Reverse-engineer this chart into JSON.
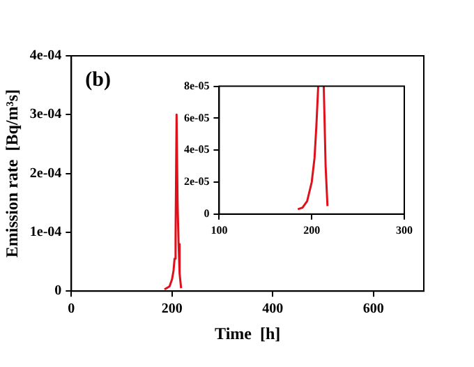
{
  "chart_data": [
    {
      "type": "line",
      "xlabel": "Time  [h]",
      "ylabel": "Emission rate  [Bq/m³s]",
      "annotations": [
        "(b)"
      ],
      "xlim": [
        0,
        700
      ],
      "xticks": [
        0,
        200,
        400,
        600
      ],
      "ylim": [
        0,
        0.0004
      ],
      "yticks": [
        0,
        {
          "value": 0.0001,
          "label": "1e-04"
        },
        {
          "value": 0.0002,
          "label": "2e-04"
        },
        {
          "value": 0.0003,
          "label": "3e-04"
        },
        {
          "value": 0.0004,
          "label": "4e-04"
        }
      ],
      "grid": false,
      "legend": false,
      "marker": "none",
      "series": [
        {
          "color": "#e0101a",
          "x": [
            185,
            195,
            200,
            203,
            205,
            207,
            209,
            211,
            213,
            215,
            218
          ],
          "values": [
            3e-06,
            8e-06,
            2e-05,
            3.5e-05,
            5.5e-05,
            9e-05,
            0.0003,
            0.00015,
            8e-05,
            3e-05,
            5e-06
          ]
        }
      ]
    },
    {
      "type": "line",
      "xlim": [
        100,
        300
      ],
      "xticks": [
        100,
        200,
        300
      ],
      "ylim": [
        0,
        8e-05
      ],
      "yticks": [
        0,
        {
          "value": 2e-05,
          "label": "2e-05"
        },
        {
          "value": 4e-05,
          "label": "4e-05"
        },
        {
          "value": 6e-05,
          "label": "6e-05"
        },
        {
          "value": 8e-05,
          "label": "8e-05"
        }
      ],
      "grid": false,
      "legend": false,
      "marker": "none",
      "series": [
        {
          "color": "#e0101a",
          "x": [
            185,
            190,
            195,
            200,
            203,
            205,
            207,
            208,
            212,
            213,
            215,
            217
          ],
          "values": [
            3e-06,
            4e-06,
            8e-06,
            2e-05,
            3.5e-05,
            5.5e-05,
            8e-05,
            null,
            null,
            8e-05,
            3e-05,
            5e-06
          ]
        }
      ]
    }
  ]
}
